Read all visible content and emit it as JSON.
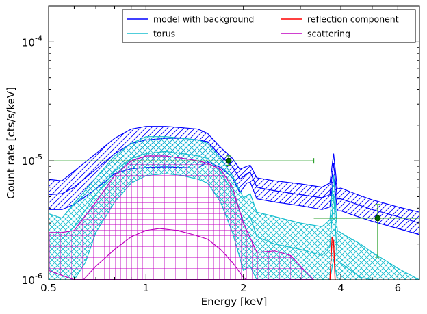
{
  "chart_data": {
    "type": "line",
    "xlabel": "Energy [keV]",
    "ylabel": "Count rate [cts/s/keV]",
    "x_scale": "log",
    "y_scale": "log",
    "xlim": [
      0.5,
      7.0
    ],
    "ylim": [
      1e-06,
      0.0002
    ],
    "x_ticks": [
      {
        "value": 0.5,
        "label": "0.5"
      },
      {
        "value": 1,
        "label": "1"
      },
      {
        "value": 2,
        "label": "2"
      },
      {
        "value": 4,
        "label": "4"
      },
      {
        "value": 6,
        "label": "6"
      }
    ],
    "y_ticks": [
      {
        "value": 1e-06,
        "label": "10",
        "exp": "-6"
      },
      {
        "value": 1e-05,
        "label": "10",
        "exp": "-5"
      },
      {
        "value": 0.0001,
        "label": "10",
        "exp": "-4"
      }
    ],
    "legend": {
      "placement": "top-right",
      "columns": 2,
      "entries": [
        {
          "name": "model with background",
          "color": "#0000ff"
        },
        {
          "name": "torus",
          "color": "#17becf"
        },
        {
          "name": "reflection component",
          "color": "#ff0000"
        },
        {
          "name": "scattering",
          "color": "#c000c0"
        }
      ]
    },
    "series": [
      {
        "name": "model with background",
        "color": "#0000ff",
        "hatch": "diagonal",
        "upper": [
          [
            0.5,
            7e-06
          ],
          [
            0.55,
            6.8e-06
          ],
          [
            0.6,
            8.2e-06
          ],
          [
            0.7,
            1.15e-05
          ],
          [
            0.8,
            1.55e-05
          ],
          [
            0.9,
            1.85e-05
          ],
          [
            1.0,
            1.95e-05
          ],
          [
            1.15,
            1.95e-05
          ],
          [
            1.3,
            1.9e-05
          ],
          [
            1.45,
            1.85e-05
          ],
          [
            1.55,
            1.7e-05
          ],
          [
            1.7,
            1.3e-05
          ],
          [
            1.85,
            1.05e-05
          ],
          [
            1.95,
            8.5e-06
          ],
          [
            2.05,
            9e-06
          ],
          [
            2.1,
            9.2e-06
          ],
          [
            2.2,
            7.2e-06
          ],
          [
            2.5,
            6.8e-06
          ],
          [
            3.0,
            6.4e-06
          ],
          [
            3.5,
            6e-06
          ],
          [
            3.7,
            6.5e-06
          ],
          [
            3.8,
            1.15e-05
          ],
          [
            3.9,
            5.8e-06
          ],
          [
            4.0,
            5.9e-06
          ],
          [
            4.5,
            5.2e-06
          ],
          [
            5.0,
            4.7e-06
          ],
          [
            6.0,
            4.1e-06
          ],
          [
            7.0,
            3.7e-06
          ]
        ],
        "mid": [
          [
            0.5,
            5.2e-06
          ],
          [
            0.55,
            5.3e-06
          ],
          [
            0.6,
            6e-06
          ],
          [
            0.7,
            8.5e-06
          ],
          [
            0.8,
            1.15e-05
          ],
          [
            0.9,
            1.4e-05
          ],
          [
            1.0,
            1.5e-05
          ],
          [
            1.15,
            1.55e-05
          ],
          [
            1.3,
            1.55e-05
          ],
          [
            1.45,
            1.5e-05
          ],
          [
            1.55,
            1.45e-05
          ],
          [
            1.7,
            1.1e-05
          ],
          [
            1.85,
            9e-06
          ],
          [
            1.95,
            7e-06
          ],
          [
            2.05,
            7.8e-06
          ],
          [
            2.1,
            8e-06
          ],
          [
            2.2,
            6e-06
          ],
          [
            2.5,
            5.6e-06
          ],
          [
            3.0,
            5.2e-06
          ],
          [
            3.5,
            4.9e-06
          ],
          [
            3.7,
            5.2e-06
          ],
          [
            3.8,
            9.5e-06
          ],
          [
            3.9,
            4.8e-06
          ],
          [
            4.0,
            4.8e-06
          ],
          [
            4.5,
            4.3e-06
          ],
          [
            5.0,
            3.9e-06
          ],
          [
            6.0,
            3.4e-06
          ],
          [
            7.0,
            3e-06
          ]
        ],
        "lower": [
          [
            0.5,
            3.9e-06
          ],
          [
            0.55,
            3.9e-06
          ],
          [
            0.6,
            4.3e-06
          ],
          [
            0.7,
            5.8e-06
          ],
          [
            0.8,
            7.8e-06
          ],
          [
            0.9,
            8.6e-06
          ],
          [
            1.0,
            8.8e-06
          ],
          [
            1.15,
            8.9e-06
          ],
          [
            1.3,
            8.8e-06
          ],
          [
            1.45,
            8.7e-06
          ],
          [
            1.55,
            9.8e-06
          ],
          [
            1.7,
            8.8e-06
          ],
          [
            1.85,
            7.2e-06
          ],
          [
            1.95,
            5.4e-06
          ],
          [
            2.05,
            6.5e-06
          ],
          [
            2.1,
            6.6e-06
          ],
          [
            2.2,
            4.8e-06
          ],
          [
            2.5,
            4.5e-06
          ],
          [
            3.0,
            4.2e-06
          ],
          [
            3.5,
            3.9e-06
          ],
          [
            3.7,
            4.1e-06
          ],
          [
            3.8,
            7.6e-06
          ],
          [
            3.9,
            3.8e-06
          ],
          [
            4.0,
            3.8e-06
          ],
          [
            4.5,
            3.4e-06
          ],
          [
            5.0,
            3.1e-06
          ],
          [
            6.0,
            2.7e-06
          ],
          [
            7.0,
            2.4e-06
          ]
        ]
      },
      {
        "name": "torus",
        "color": "#17becf",
        "hatch": "cross",
        "upper": [
          [
            0.5,
            3.6e-06
          ],
          [
            0.55,
            3.3e-06
          ],
          [
            0.6,
            4.4e-06
          ],
          [
            0.7,
            7.2e-06
          ],
          [
            0.8,
            1.1e-05
          ],
          [
            0.9,
            1.4e-05
          ],
          [
            1.0,
            1.6e-05
          ],
          [
            1.15,
            1.6e-05
          ],
          [
            1.3,
            1.55e-05
          ],
          [
            1.45,
            1.5e-05
          ],
          [
            1.55,
            1.4e-05
          ],
          [
            1.7,
            1.05e-05
          ],
          [
            1.85,
            7.5e-06
          ],
          [
            2.0,
            4.9e-06
          ],
          [
            2.1,
            5.3e-06
          ],
          [
            2.2,
            3.7e-06
          ],
          [
            2.5,
            3.4e-06
          ],
          [
            3.0,
            3e-06
          ],
          [
            3.5,
            2.8e-06
          ],
          [
            3.7,
            3.2e-06
          ],
          [
            3.8,
            7.6e-06
          ],
          [
            3.9,
            2.6e-06
          ],
          [
            4.2,
            2.3e-06
          ],
          [
            4.6,
            2e-06
          ],
          [
            5.0,
            1.7e-06
          ],
          [
            5.5,
            1.45e-06
          ],
          [
            6.0,
            1.25e-06
          ],
          [
            7.0,
            1e-06
          ]
        ],
        "mid": [
          [
            0.5,
            2.2e-06
          ],
          [
            0.55,
            2.2e-06
          ],
          [
            0.6,
            2.8e-06
          ],
          [
            0.7,
            5.2e-06
          ],
          [
            0.8,
            8.2e-06
          ],
          [
            0.9,
            1.05e-05
          ],
          [
            1.0,
            1.15e-05
          ],
          [
            1.15,
            1.2e-05
          ],
          [
            1.3,
            1.15e-05
          ],
          [
            1.45,
            1.1e-05
          ],
          [
            1.55,
            1.05e-05
          ],
          [
            1.7,
            8e-06
          ],
          [
            1.85,
            5.5e-06
          ],
          [
            2.0,
            3.1e-06
          ],
          [
            2.1,
            3.4e-06
          ],
          [
            2.2,
            2.3e-06
          ],
          [
            2.5,
            2e-06
          ],
          [
            3.0,
            1.8e-06
          ],
          [
            3.5,
            1.6e-06
          ],
          [
            3.7,
            1.9e-06
          ],
          [
            3.8,
            5.3e-06
          ],
          [
            3.9,
            1.45e-06
          ],
          [
            4.2,
            1.25e-06
          ],
          [
            4.6,
            1.05e-06
          ],
          [
            5.0,
            1e-06
          ]
        ],
        "lower": [
          [
            0.5,
            1e-06
          ],
          [
            0.6,
            1e-06
          ],
          [
            0.65,
            1.4e-06
          ],
          [
            0.7,
            2.5e-06
          ],
          [
            0.8,
            4.5e-06
          ],
          [
            0.9,
            6.5e-06
          ],
          [
            1.0,
            7.5e-06
          ],
          [
            1.15,
            7.8e-06
          ],
          [
            1.3,
            7.5e-06
          ],
          [
            1.45,
            7e-06
          ],
          [
            1.55,
            6.5e-06
          ],
          [
            1.7,
            4.5e-06
          ],
          [
            1.85,
            2.5e-06
          ],
          [
            2.0,
            1.2e-06
          ],
          [
            2.1,
            1.3e-06
          ],
          [
            2.2,
            1e-06
          ],
          [
            3.7,
            1e-06
          ],
          [
            3.8,
            1.5e-06
          ],
          [
            3.9,
            1e-06
          ]
        ]
      },
      {
        "name": "reflection component",
        "color": "#ff0000",
        "points": [
          [
            3.7,
            1e-06
          ],
          [
            3.72,
            1.3e-06
          ],
          [
            3.76,
            2.3e-06
          ],
          [
            3.8,
            2.1e-06
          ],
          [
            3.84,
            1e-06
          ],
          [
            3.86,
            1e-06
          ]
        ]
      },
      {
        "name": "scattering",
        "color": "#c000c0",
        "hatch": "grid",
        "upper": [
          [
            0.5,
            2.5e-06
          ],
          [
            0.55,
            2.5e-06
          ],
          [
            0.6,
            2.6e-06
          ],
          [
            0.7,
            4.5e-06
          ],
          [
            0.8,
            7.5e-06
          ],
          [
            0.9,
            1e-05
          ],
          [
            1.0,
            1.1e-05
          ],
          [
            1.15,
            1.1e-05
          ],
          [
            1.3,
            1.05e-05
          ],
          [
            1.45,
            1e-05
          ],
          [
            1.55,
            9.5e-06
          ],
          [
            1.7,
            8.5e-06
          ],
          [
            1.85,
            6e-06
          ],
          [
            2.0,
            3e-06
          ],
          [
            2.2,
            1.7e-06
          ],
          [
            2.5,
            1.75e-06
          ],
          [
            2.8,
            1.6e-06
          ],
          [
            3.0,
            1.3e-06
          ],
          [
            3.3,
            1e-06
          ]
        ],
        "lower": [
          [
            0.5,
            1.2e-06
          ],
          [
            0.6,
            1e-06
          ],
          [
            3.3,
            1e-06
          ]
        ],
        "central": [
          [
            0.64,
            1e-06
          ],
          [
            0.7,
            1.3e-06
          ],
          [
            0.8,
            1.8e-06
          ],
          [
            0.9,
            2.3e-06
          ],
          [
            1.0,
            2.6e-06
          ],
          [
            1.1,
            2.7e-06
          ],
          [
            1.25,
            2.6e-06
          ],
          [
            1.4,
            2.4e-06
          ],
          [
            1.55,
            2.2e-06
          ],
          [
            1.7,
            1.8e-06
          ],
          [
            1.85,
            1.4e-06
          ],
          [
            2.0,
            1.05e-06
          ],
          [
            2.05,
            1e-06
          ]
        ]
      }
    ],
    "data_points": {
      "color": "#2ca02c",
      "points": [
        {
          "x": 1.8,
          "y": 1e-05,
          "xerr_low": 0.5,
          "xerr_high": 3.3,
          "yerr_low": 9.2e-06,
          "yerr_high": 1.1e-05
        },
        {
          "x": 5.2,
          "y": 3.3e-06,
          "xerr_low": 3.3,
          "xerr_high": 7.0,
          "yerr_low": 1.55e-06,
          "yerr_high": 4.3e-06
        }
      ]
    }
  }
}
